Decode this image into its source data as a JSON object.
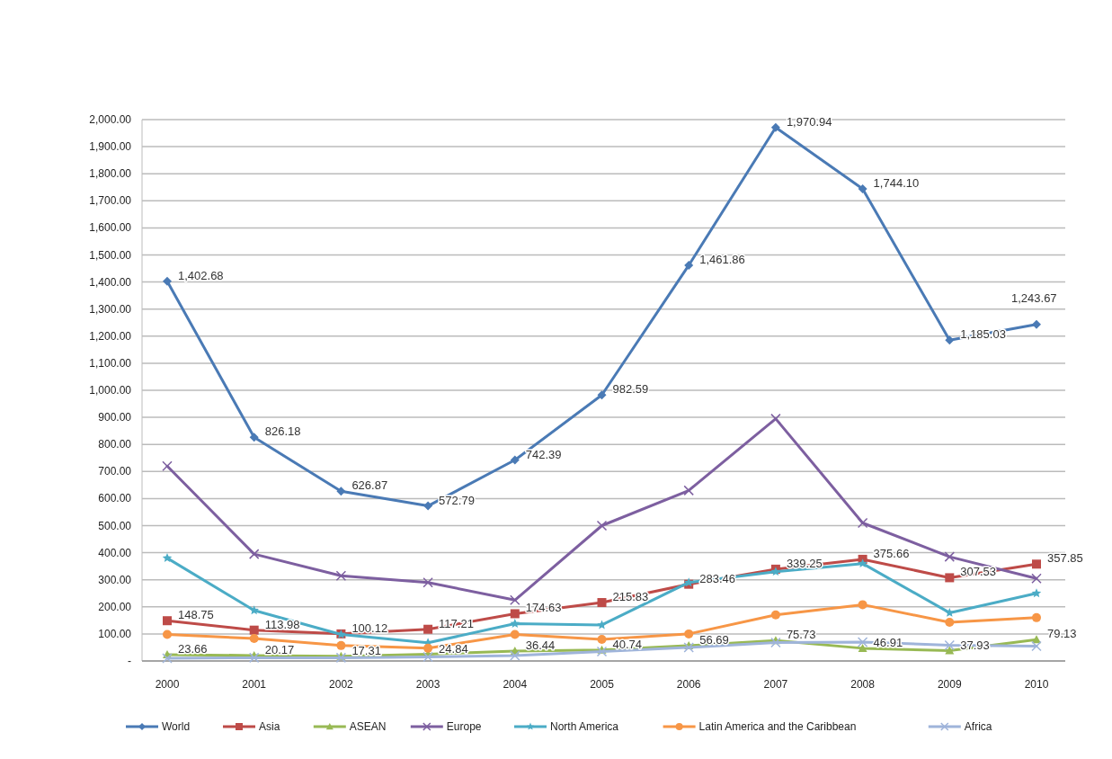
{
  "chart_data": {
    "type": "line",
    "categories": [
      "2000",
      "2001",
      "2002",
      "2003",
      "2004",
      "2005",
      "2006",
      "2007",
      "2008",
      "2009",
      "2010"
    ],
    "ylim": [
      0,
      2000
    ],
    "yticks": [
      {
        "value": 0,
        "label": "-"
      },
      {
        "value": 100,
        "label": "100.00"
      },
      {
        "value": 200,
        "label": "200.00"
      },
      {
        "value": 300,
        "label": "300.00"
      },
      {
        "value": 400,
        "label": "400.00"
      },
      {
        "value": 500,
        "label": "500.00"
      },
      {
        "value": 600,
        "label": "600.00"
      },
      {
        "value": 700,
        "label": "700.00"
      },
      {
        "value": 800,
        "label": "800.00"
      },
      {
        "value": 900,
        "label": "900.00"
      },
      {
        "value": 1000,
        "label": "1,000.00"
      },
      {
        "value": 1100,
        "label": "1,100.00"
      },
      {
        "value": 1200,
        "label": "1,200.00"
      },
      {
        "value": 1300,
        "label": "1,300.00"
      },
      {
        "value": 1400,
        "label": "1,400.00"
      },
      {
        "value": 1500,
        "label": "1,500.00"
      },
      {
        "value": 1600,
        "label": "1,600.00"
      },
      {
        "value": 1700,
        "label": "1,700.00"
      },
      {
        "value": 1800,
        "label": "1,800.00"
      },
      {
        "value": 1900,
        "label": "1,900.00"
      },
      {
        "value": 2000,
        "label": "2,000.00"
      }
    ],
    "grid": "y",
    "legend": "bottom",
    "line_style": "solid",
    "series": [
      {
        "name": "World",
        "color": "#4a7ab5",
        "marker": "diamond",
        "values": [
          1402.68,
          826.18,
          626.87,
          572.79,
          742.39,
          982.59,
          1461.86,
          1970.94,
          1744.1,
          1185.03,
          1243.67
        ],
        "value_labels": [
          "1,402.68",
          "826.18",
          "626.87",
          "572.79",
          "742.39",
          "982.59",
          "1,461.86",
          "1,970.94",
          "1,744.10",
          "1,185.03",
          "1,243.67"
        ]
      },
      {
        "name": "Asia",
        "color": "#be4b48",
        "marker": "square",
        "values": [
          148.75,
          113.98,
          100.12,
          117.21,
          174.63,
          215.83,
          283.46,
          339.25,
          375.66,
          307.53,
          357.85
        ],
        "value_labels": [
          "148.75",
          "113.98",
          "100.12",
          "117.21",
          "174.63",
          "215.83",
          "283.46",
          "339.25",
          "375.66",
          "307.53",
          "357.85"
        ]
      },
      {
        "name": "ASEAN",
        "color": "#98b954",
        "marker": "triangle",
        "values": [
          23.66,
          20.17,
          17.31,
          24.84,
          36.44,
          40.74,
          56.69,
          75.73,
          46.91,
          37.93,
          79.13
        ],
        "value_labels": [
          "23.66",
          "20.17",
          "17.31",
          "24.84",
          "36.44",
          "40.74",
          "56.69",
          "75.73",
          "46.91",
          "37.93",
          "79.13"
        ]
      },
      {
        "name": "Europe",
        "color": "#7d5fa0",
        "marker": "cross",
        "values": [
          720,
          395,
          315,
          290,
          225,
          500,
          630,
          895,
          510,
          385,
          305
        ]
      },
      {
        "name": "North America",
        "color": "#4bacc6",
        "marker": "star",
        "values": [
          380,
          187,
          98,
          67,
          138,
          133,
          290,
          330,
          360,
          178,
          250
        ]
      },
      {
        "name": "Latin America and the Caribbean",
        "color": "#f79646",
        "marker": "circle",
        "values": [
          98,
          83,
          57,
          47,
          98,
          80,
          100,
          170,
          208,
          143,
          160
        ]
      },
      {
        "name": "Africa",
        "color": "#9fb4da",
        "marker": "cross",
        "values": [
          10,
          12,
          12,
          15,
          20,
          35,
          50,
          68,
          70,
          58,
          55
        ]
      }
    ]
  }
}
